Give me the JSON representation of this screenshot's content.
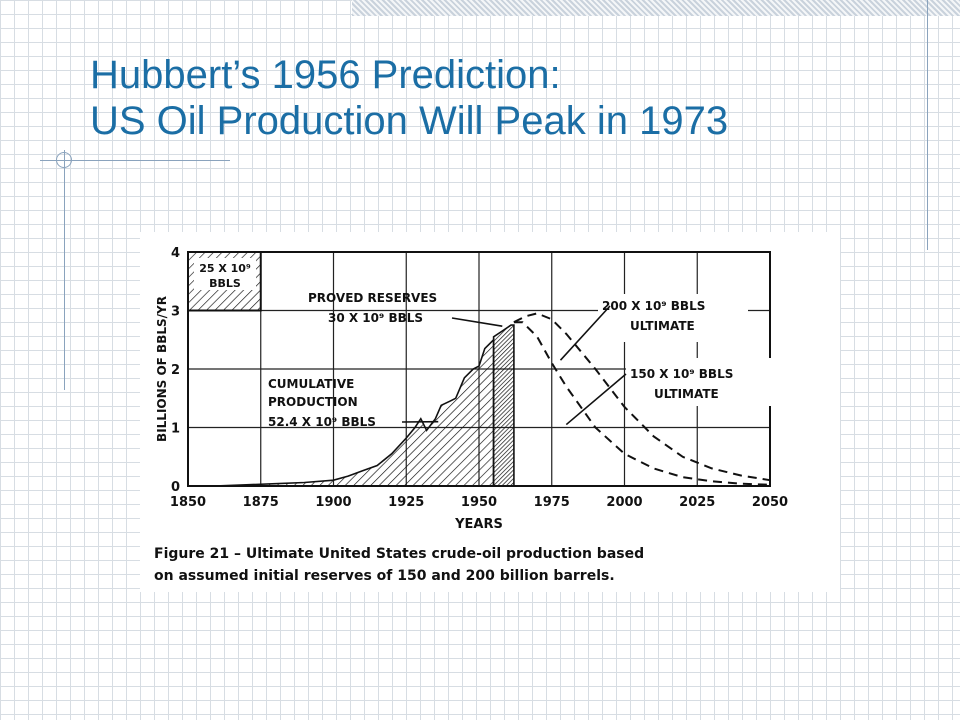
{
  "slide": {
    "title_line1": "Hubbert’s 1956 Prediction:",
    "title_line2": "US Oil Production Will Peak in 1973"
  },
  "chart_data": {
    "type": "area",
    "xlabel": "YEARS",
    "ylabel": "BILLIONS OF BBLS/YR",
    "xlim": [
      1850,
      2050
    ],
    "ylim": [
      0,
      4
    ],
    "x_ticks": [
      "1850",
      "1875",
      "1900",
      "1925",
      "1950",
      "1975",
      "2000",
      "2025",
      "2050"
    ],
    "y_ticks": [
      "0",
      "1",
      "2",
      "3",
      "4"
    ],
    "grid": true,
    "caption_line1": "Figure 21 – Ultimate United States crude-oil production based",
    "caption_line2": "on assumed initial reserves of 150 and 200 billion barrels.",
    "annotations": {
      "box_line1": "25 X 10⁹",
      "box_line2": "BBLS",
      "proved_line1": "PROVED RESERVES",
      "proved_line2": "30 X 10⁹ BBLS",
      "cumulative_line1": "CUMULATIVE",
      "cumulative_line2": "PRODUCTION",
      "cumulative_line3": "52.4 X 10⁹ BBLS",
      "u200_line1": "200 X 10⁹ BBLS",
      "u200_line2": "ULTIMATE",
      "u150_line1": "150 X 10⁹ BBLS",
      "u150_line2": "ULTIMATE"
    },
    "series": [
      {
        "name": "CUMULATIVE PRODUCTION",
        "style": "hatched",
        "x": [
          1859,
          1870,
          1880,
          1890,
          1900,
          1905,
          1910,
          1915,
          1920,
          1925,
          1928,
          1930,
          1932,
          1935,
          1937,
          1940,
          1942,
          1945,
          1948,
          1950,
          1952,
          1955
        ],
        "y": [
          0,
          0.02,
          0.04,
          0.06,
          0.1,
          0.17,
          0.26,
          0.35,
          0.55,
          0.82,
          1.0,
          1.15,
          0.95,
          1.15,
          1.38,
          1.45,
          1.5,
          1.85,
          2.0,
          2.05,
          2.35,
          2.5
        ]
      },
      {
        "name": "PROVED RESERVES",
        "style": "dark-hatched",
        "x": [
          1955,
          1958,
          1961,
          1962
        ],
        "y": [
          2.55,
          2.65,
          2.75,
          2.75
        ]
      },
      {
        "name": "200 X 10⁹ BBLS ULTIMATE",
        "style": "dashed",
        "x": [
          1962,
          1966,
          1970,
          1975,
          1980,
          1990,
          2000,
          2010,
          2020,
          2030,
          2040,
          2050
        ],
        "y": [
          2.8,
          2.9,
          2.95,
          2.85,
          2.6,
          2.0,
          1.35,
          0.85,
          0.5,
          0.3,
          0.18,
          0.1
        ]
      },
      {
        "name": "150 X 10⁹ BBLS ULTIMATE",
        "style": "dashed",
        "x": [
          1962,
          1965,
          1970,
          1975,
          1980,
          1990,
          2000,
          2010,
          2020,
          2030,
          2040,
          2050
        ],
        "y": [
          2.8,
          2.8,
          2.55,
          2.1,
          1.7,
          1.0,
          0.55,
          0.3,
          0.15,
          0.08,
          0.04,
          0.02
        ]
      }
    ]
  },
  "colors": {
    "title": "#1b6ea5",
    "ink": "#111111",
    "grid": "#d7dde3"
  }
}
